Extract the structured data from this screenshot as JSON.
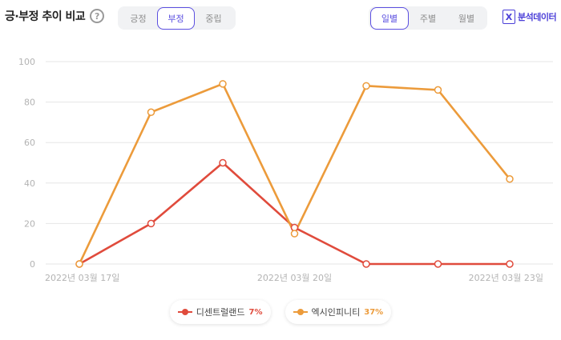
{
  "header": {
    "title": "긍·부정 추이 비교",
    "help_icon": "?",
    "sentiment_tabs": [
      {
        "label": "긍정",
        "active": false
      },
      {
        "label": "부정",
        "active": true
      },
      {
        "label": "중립",
        "active": false
      }
    ],
    "period_tabs": [
      {
        "label": "일별",
        "active": true
      },
      {
        "label": "주별",
        "active": false
      },
      {
        "label": "월별",
        "active": false
      }
    ],
    "analysis_icon": "X",
    "analysis_label": "분석데이터"
  },
  "colors": {
    "accent": "#5b4fe0",
    "series_red": "#e04b3c",
    "series_orange": "#ec9b3b",
    "grid": "#e6e6e6"
  },
  "chart_data": {
    "type": "line",
    "x_labels": [
      "2022년 03월 17일",
      "",
      "",
      "2022년 03월 20일",
      "",
      "",
      "2022년 03월 23일"
    ],
    "ylim": [
      0,
      100
    ],
    "yticks": [
      0,
      20,
      40,
      60,
      80,
      100
    ],
    "grid": true,
    "legend_position": "bottom-center",
    "series": [
      {
        "name": "디센트럴랜드",
        "percent": "7%",
        "color": "#e04b3c",
        "values": [
          0,
          20,
          50,
          18,
          0,
          0,
          0
        ]
      },
      {
        "name": "엑시인피니티",
        "percent": "37%",
        "color": "#ec9b3b",
        "values": [
          0,
          75,
          89,
          15,
          88,
          86,
          42
        ]
      }
    ]
  }
}
